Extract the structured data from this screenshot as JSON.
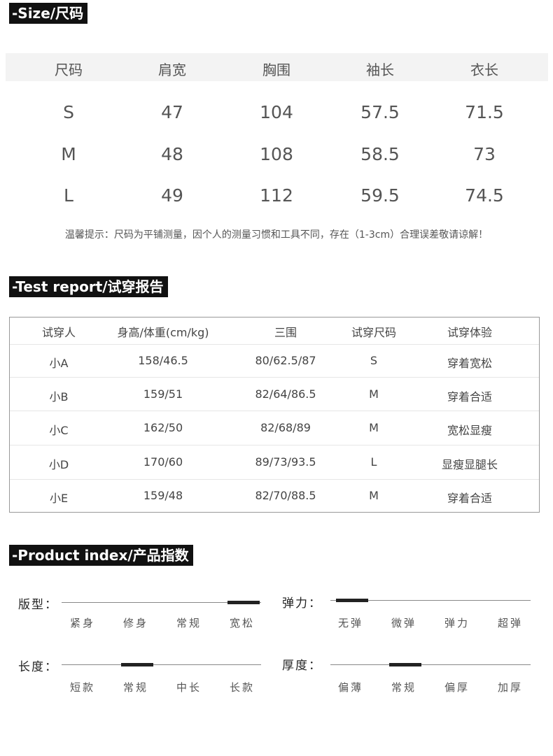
{
  "size_section": {
    "title": "-Size/尺码",
    "headers": [
      "尺码",
      "肩宽",
      "胸围",
      "袖长",
      "衣长"
    ],
    "rows": [
      [
        "S",
        "47",
        "104",
        "57.5",
        "71.5"
      ],
      [
        "M",
        "48",
        "108",
        "58.5",
        "73"
      ],
      [
        "L",
        "49",
        "112",
        "59.5",
        "74.5"
      ]
    ],
    "note": "温馨提示：尺码为平铺测量，因个人的测量习惯和工具不同，存在（1-3cm）合理误差敬请谅解！"
  },
  "test_report": {
    "title": "-Test report/试穿报告",
    "headers": [
      "试穿人",
      "身高/体重(cm/kg)",
      "三围",
      "试穿尺码",
      "试穿体验"
    ],
    "rows": [
      [
        "小A",
        "158/46.5",
        "80/62.5/87",
        "S",
        "穿着宽松"
      ],
      [
        "小B",
        "159/51",
        "82/64/86.5",
        "M",
        "穿着合适"
      ],
      [
        "小C",
        "162/50",
        "82/68/89",
        "M",
        "宽松显瘦"
      ],
      [
        "小D",
        "170/60",
        "89/73/93.5",
        "L",
        "显瘦显腿长"
      ],
      [
        "小E",
        "159/48",
        "82/70/88.5",
        "M",
        "穿着合适"
      ]
    ]
  },
  "product_index": {
    "title": "-Product index/产品指数",
    "items": [
      {
        "label": "版型：",
        "options": [
          "紧身",
          "修身",
          "常规",
          "宽松"
        ],
        "selected": "宽松"
      },
      {
        "label": "弹力：",
        "options": [
          "无弹",
          "微弹",
          "弹力",
          "超弹"
        ],
        "selected": "无弹"
      },
      {
        "label": "长度：",
        "options": [
          "短款",
          "常规",
          "中长",
          "长款"
        ],
        "selected": "常规"
      },
      {
        "label": "厚度：",
        "options": [
          "偏薄",
          "常规",
          "偏厚",
          "加厚"
        ],
        "selected": "常规"
      }
    ]
  }
}
